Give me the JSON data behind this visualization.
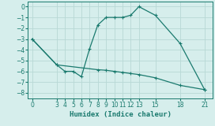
{
  "line1_x": [
    0,
    3,
    4,
    5,
    6,
    7,
    8,
    9,
    10,
    11,
    12,
    13,
    15,
    18,
    21
  ],
  "line1_y": [
    -3.0,
    -5.4,
    -6.0,
    -6.0,
    -6.5,
    -3.9,
    -1.7,
    -1.0,
    -1.0,
    -1.0,
    -0.8,
    0.0,
    -0.8,
    -3.4,
    -7.7
  ],
  "line2_x": [
    0,
    3,
    8,
    9,
    10,
    11,
    12,
    13,
    15,
    18,
    21
  ],
  "line2_y": [
    -3.0,
    -5.4,
    -5.85,
    -5.9,
    -6.0,
    -6.1,
    -6.2,
    -6.3,
    -6.6,
    -7.3,
    -7.7
  ],
  "line_color": "#1a7a6e",
  "bg_color": "#d6eeec",
  "grid_color": "#b8d8d5",
  "xlabel": "Humidex (Indice chaleur)",
  "xticks": [
    0,
    3,
    4,
    5,
    6,
    7,
    8,
    9,
    10,
    11,
    12,
    13,
    15,
    18,
    21
  ],
  "yticks": [
    0,
    -1,
    -2,
    -3,
    -4,
    -5,
    -6,
    -7,
    -8
  ],
  "xlim": [
    -0.5,
    22.0
  ],
  "ylim": [
    -8.5,
    0.5
  ]
}
